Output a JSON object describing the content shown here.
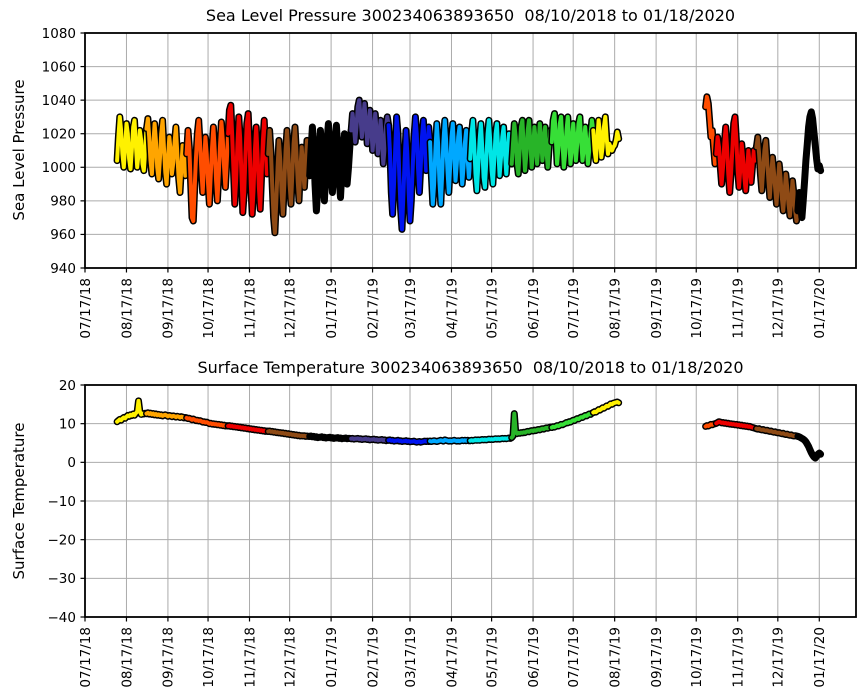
{
  "style": {
    "background": "#FFFFFF",
    "grid_color": "#ABABAB",
    "spine_color": "#000000",
    "text_color": "#000000"
  },
  "month_colors_jan_to_dec": [
    "#000000",
    "#473C8B",
    "#0014F0",
    "#00A8FF",
    "#00E6E6",
    "#28B428",
    "#37DF37",
    "#FFF100",
    "#FFA500",
    "#FF4D00",
    "#ED0000",
    "#8E4A15"
  ],
  "chart_data": [
    {
      "type": "line",
      "marker": "circle-black-edge",
      "title": "Sea Level Pressure 300234063893650  08/10/2018 to 01/18/2020",
      "ylabel": "Sea Level Pressure",
      "xlabel": "",
      "ylim": [
        940,
        1080
      ],
      "ytick_step": 20,
      "grid": true,
      "legend": false,
      "epoch": "08/10/2018",
      "x_tick_labels": [
        "07/17/18",
        "08/17/18",
        "09/17/18",
        "10/17/18",
        "11/17/18",
        "12/17/18",
        "01/17/19",
        "02/17/19",
        "03/17/19",
        "04/17/19",
        "05/17/19",
        "06/17/19",
        "07/17/19",
        "08/17/19",
        "09/17/19",
        "10/17/19",
        "11/17/19",
        "12/17/19",
        "01/17/20"
      ],
      "series": [
        {
          "name": "deployment-segment-1",
          "start_day": 0,
          "step_days": 1,
          "values": [
            1004,
            1018,
            1030,
            1022,
            1008,
            1000,
            1012,
            1026,
            1020,
            1005,
            999,
            1010,
            1024,
            1028,
            1014,
            1000,
            1008,
            1022,
            1016,
            1002,
            998,
            1010,
            1023,
            1029,
            1018,
            1004,
            996,
            1012,
            1026,
            1016,
            1000,
            993,
            1005,
            1020,
            1028,
            1012,
            997,
            990,
            1004,
            1018,
            1010,
            996,
            1003,
            1015,
            1024,
            1008,
            994,
            985,
            999,
            1013,
            1006,
            995,
            1008,
            1022,
            1012,
            990,
            970,
            968,
            988,
            1006,
            1020,
            1028,
            1015,
            998,
            985,
            1002,
            1018,
            1008,
            990,
            978,
            995,
            1012,
            1024,
            1010,
            992,
            980,
            996,
            1014,
            1027,
            1016,
            1000,
            988,
            1004,
            1020,
            1034,
            1037,
            1020,
            998,
            978,
            992,
            1014,
            1030,
            1018,
            995,
            973,
            985,
            1008,
            1026,
            1032,
            1014,
            990,
            972,
            986,
            1010,
            1024,
            1008,
            988,
            975,
            994,
            1016,
            1028,
            1012,
            996,
            1008,
            1022,
            1010,
            988,
            970,
            961,
            980,
            1000,
            1016,
            1004,
            985,
            972,
            990,
            1010,
            1022,
            1008,
            990,
            978,
            996,
            1014,
            1024,
            1010,
            992,
            980,
            998,
            1012,
            1000,
            988,
            1002,
            1016,
            1006,
            995,
            1010,
            1024,
            1012,
            990,
            974,
            988,
            1008,
            1022,
            1010,
            992,
            980,
            998,
            1016,
            1026,
            1012,
            995,
            985,
            1000,
            1015,
            1025,
            1010,
            993,
            982,
            997,
            1012,
            1020,
            1005,
            990,
            1000,
            1012,
            1022,
            1032,
            1026,
            1015,
            1024,
            1036,
            1040,
            1030,
            1018,
            1028,
            1038,
            1027,
            1014,
            1022,
            1034,
            1024,
            1010,
            1020,
            1032,
            1022,
            1008,
            1018,
            1028,
            1015,
            1002,
            1012,
            1024,
            1030,
            1025,
            1010,
            985,
            972,
            990,
            1012,
            1030,
            1020,
            995,
            975,
            963,
            982,
            1005,
            1022,
            1008,
            985,
            968,
            980,
            1000,
            1018,
            1030,
            1020,
            1000,
            985,
            1000,
            1018,
            1028,
            1015,
            998,
            1010,
            1024,
            1015,
            995,
            978,
            990,
            1010,
            1026,
            1014,
            992,
            978,
            995,
            1015,
            1028,
            1016,
            998,
            985,
            1000,
            1018,
            1026,
            1010,
            992,
            1002,
            1018,
            1024,
            1008,
            990,
            1000,
            1014,
            1022,
            1006,
            994,
            1005,
            1020,
            1028,
            1014,
            996,
            986,
            1000,
            1016,
            1026,
            1012,
            994,
            988,
            1004,
            1020,
            1028,
            1015,
            998,
            990,
            1005,
            1020,
            1026,
            1010,
            995,
            1006,
            1018,
            1024,
            1008,
            996,
            1008,
            1020,
            1012,
            1002,
            1014,
            1026,
            1018,
            1002,
            996,
            1010,
            1024,
            1028,
            1012,
            998,
            1008,
            1022,
            1028,
            1014,
            1000,
            1010,
            1024,
            1016,
            1002,
            1012,
            1026,
            1018,
            1004,
            1014,
            1024,
            1010,
            1000,
            1012,
            1022,
            1015,
            1028,
            1032,
            1018,
            1002,
            1012,
            1026,
            1030,
            1014,
            1000,
            1008,
            1022,
            1030,
            1016,
            1002,
            1012,
            1026,
            1016,
            1004,
            1014,
            1026,
            1030,
            1016,
            1004,
            1012,
            1024,
            1014,
            1002,
            1010,
            1020,
            1028,
            1022,
            1010,
            1004,
            1016,
            1028,
            1020,
            1006,
            1012,
            1024,
            1030,
            1018,
            1008,
            1014,
            1012,
            1010,
            1012,
            1013,
            1016,
            1021,
            1017
          ]
        },
        {
          "name": "deployment-segment-2",
          "start_day": 440,
          "step_days": 1,
          "values": [
            1036,
            1042,
            1038,
            1028,
            1018,
            1022,
            1012,
            1002,
            1008,
            1018,
            1012,
            1000,
            990,
            1000,
            1014,
            1024,
            1012,
            996,
            985,
            996,
            1010,
            1026,
            1030,
            1016,
            998,
            988,
            1000,
            1014,
            1006,
            994,
            986,
            998,
            1010,
            1001,
            991,
            1000,
            1010,
            1004,
            1012,
            1018,
            1008,
            996,
            986,
            998,
            1010,
            1016,
            1004,
            992,
            982,
            994,
            1006,
            998,
            988,
            978,
            990,
            1002,
            994,
            982,
            974,
            984,
            996,
            988,
            978,
            971,
            980,
            992,
            984,
            974,
            968,
            974,
            985,
            978,
            970,
            980,
            992,
            1004,
            1014,
            1024,
            1030,
            1033,
            1029,
            1021,
            1013,
            1005,
            999,
            1001,
            998
          ]
        }
      ]
    },
    {
      "type": "line",
      "marker": "circle-black-edge",
      "title": "Surface Temperature 300234063893650  08/10/2018 to 01/18/2020",
      "ylabel": "Surface Temperature",
      "xlabel": "",
      "ylim": [
        -40,
        20
      ],
      "ytick_step": 10,
      "grid": true,
      "legend": false,
      "epoch": "08/10/2018",
      "x_tick_labels": [
        "07/17/18",
        "08/17/18",
        "09/17/18",
        "10/17/18",
        "11/17/18",
        "12/17/18",
        "01/17/19",
        "02/17/19",
        "03/17/19",
        "04/17/19",
        "05/17/19",
        "06/17/19",
        "07/17/19",
        "08/17/19",
        "09/17/19",
        "10/17/19",
        "11/17/19",
        "12/17/19",
        "01/17/20"
      ],
      "series": [
        {
          "name": "deployment-segment-1",
          "start_day": 0,
          "step_days": 1,
          "values": [
            10.5,
            10.8,
            11.1,
            10.9,
            11.3,
            11.6,
            11.4,
            11.8,
            12.1,
            11.9,
            12.3,
            12.1,
            12.5,
            12.2,
            12.7,
            13.1,
            15.9,
            13.2,
            12.4,
            12.6,
            12.5,
            12.7,
            12.6,
            12.8,
            12.5,
            12.7,
            12.4,
            12.6,
            12.3,
            12.5,
            12.2,
            12.4,
            12.1,
            12.3,
            12.0,
            12.2,
            12.3,
            12.1,
            11.9,
            12.1,
            12.0,
            11.8,
            12.0,
            11.9,
            11.7,
            11.9,
            11.8,
            11.6,
            11.8,
            11.7,
            11.5,
            11.6,
            11.5,
            11.3,
            11.4,
            11.2,
            11.0,
            11.2,
            11.0,
            10.8,
            10.9,
            10.7,
            10.8,
            10.6,
            10.4,
            10.5,
            10.3,
            10.4,
            10.2,
            10.0,
            10.1,
            9.9,
            10.0,
            9.8,
            9.9,
            9.7,
            9.8,
            9.6,
            9.7,
            9.5,
            9.6,
            9.4,
            9.5,
            9.4,
            9.5,
            9.3,
            9.4,
            9.2,
            9.3,
            9.1,
            9.2,
            9.0,
            9.1,
            8.9,
            9.0,
            8.8,
            8.9,
            8.7,
            8.8,
            8.6,
            8.7,
            8.5,
            8.6,
            8.4,
            8.5,
            8.3,
            8.4,
            8.2,
            8.3,
            8.1,
            8.2,
            8.0,
            8.1,
            8.0,
            8.1,
            7.9,
            8.0,
            7.8,
            7.9,
            7.7,
            7.8,
            7.6,
            7.7,
            7.5,
            7.6,
            7.4,
            7.5,
            7.3,
            7.4,
            7.2,
            7.3,
            7.1,
            7.2,
            7.0,
            7.1,
            6.9,
            7.0,
            6.8,
            6.9,
            6.8,
            6.9,
            6.7,
            6.8,
            6.7,
            6.7,
            6.8,
            6.6,
            6.7,
            6.5,
            6.6,
            6.4,
            6.5,
            6.5,
            6.6,
            6.4,
            6.5,
            6.3,
            6.4,
            6.4,
            6.5,
            6.3,
            6.4,
            6.2,
            6.3,
            6.3,
            6.4,
            6.2,
            6.3,
            6.1,
            6.2,
            6.2,
            6.3,
            6.1,
            6.2,
            6.2,
            6.1,
            6.2,
            6.0,
            6.1,
            6.1,
            6.2,
            6.0,
            6.1,
            5.9,
            6.0,
            6.0,
            6.1,
            5.9,
            6.0,
            5.8,
            5.9,
            5.9,
            6.0,
            5.8,
            5.9,
            5.7,
            5.8,
            5.8,
            5.9,
            5.7,
            5.8,
            5.6,
            5.7,
            5.7,
            5.8,
            5.6,
            5.7,
            5.5,
            5.6,
            5.6,
            5.7,
            5.5,
            5.6,
            5.4,
            5.5,
            5.5,
            5.6,
            5.4,
            5.5,
            5.3,
            5.4,
            5.4,
            5.5,
            5.3,
            5.2,
            5.3,
            5.4,
            5.2,
            5.3,
            5.4,
            5.5,
            5.4,
            5.5,
            5.4,
            5.5,
            5.4,
            5.5,
            5.6,
            5.5,
            5.4,
            5.5,
            5.6,
            5.7,
            5.6,
            5.5,
            5.8,
            5.7,
            5.6,
            5.5,
            5.6,
            5.5,
            5.6,
            5.7,
            5.6,
            5.5,
            5.6,
            5.5,
            5.6,
            5.7,
            5.6,
            5.7,
            5.6,
            5.7,
            5.6,
            5.6,
            5.7,
            5.6,
            5.7,
            5.8,
            5.7,
            5.8,
            5.7,
            5.8,
            5.9,
            5.8,
            5.9,
            5.8,
            5.9,
            6.0,
            5.9,
            6.0,
            5.9,
            6.0,
            6.1,
            6.0,
            6.1,
            6.0,
            6.1,
            6.2,
            6.1,
            6.2,
            6.1,
            6.2,
            6.3,
            6.2,
            6.4,
            6.8,
            12.6,
            7.8,
            7.4,
            7.6,
            7.5,
            7.7,
            7.6,
            7.8,
            7.7,
            7.9,
            8.0,
            7.9,
            8.1,
            8.2,
            8.1,
            8.3,
            8.2,
            8.4,
            8.5,
            8.4,
            8.6,
            8.7,
            8.6,
            8.8,
            8.9,
            8.8,
            9.0,
            9.1,
            9.0,
            9.2,
            9.1,
            9.3,
            9.5,
            9.4,
            9.6,
            9.8,
            9.7,
            9.9,
            10.1,
            10.3,
            10.2,
            10.5,
            10.4,
            10.7,
            10.9,
            10.8,
            11.1,
            11.3,
            11.2,
            11.5,
            11.7,
            11.6,
            11.9,
            12.1,
            12.0,
            12.3,
            12.5,
            12.4,
            12.7,
            12.9,
            13.1,
            13.0,
            13.3,
            13.6,
            13.5,
            13.8,
            14.1,
            14.0,
            14.3,
            14.6,
            14.5,
            14.8,
            15.1,
            15.0,
            15.3,
            15.4,
            15.5,
            15.6,
            15.4
          ]
        },
        {
          "name": "deployment-segment-2",
          "start_day": 440,
          "step_days": 1,
          "values": [
            9.3,
            9.5,
            9.4,
            9.6,
            9.8,
            9.7,
            9.9,
            10.0,
            10.1,
            10.3,
            10.5,
            10.4,
            10.2,
            10.3,
            10.1,
            10.2,
            10.0,
            10.1,
            9.9,
            10.0,
            9.8,
            9.9,
            9.7,
            9.8,
            9.6,
            9.7,
            9.5,
            9.6,
            9.4,
            9.5,
            9.3,
            9.4,
            9.2,
            9.3,
            9.1,
            9.0,
            8.9,
            8.8,
            8.7,
            8.6,
            8.7,
            8.5,
            8.4,
            8.5,
            8.3,
            8.2,
            8.3,
            8.1,
            8.0,
            8.1,
            7.9,
            7.8,
            7.9,
            7.7,
            7.6,
            7.7,
            7.5,
            7.4,
            7.5,
            7.3,
            7.2,
            7.3,
            7.1,
            7.0,
            7.1,
            6.9,
            6.8,
            6.9,
            6.8,
            6.7,
            6.6,
            6.4,
            6.2,
            6.0,
            5.7,
            5.3,
            4.7,
            4.1,
            3.3,
            2.5,
            1.9,
            1.4,
            1.1,
            1.5,
            2.1,
            2.4,
            2.1
          ]
        }
      ]
    }
  ]
}
